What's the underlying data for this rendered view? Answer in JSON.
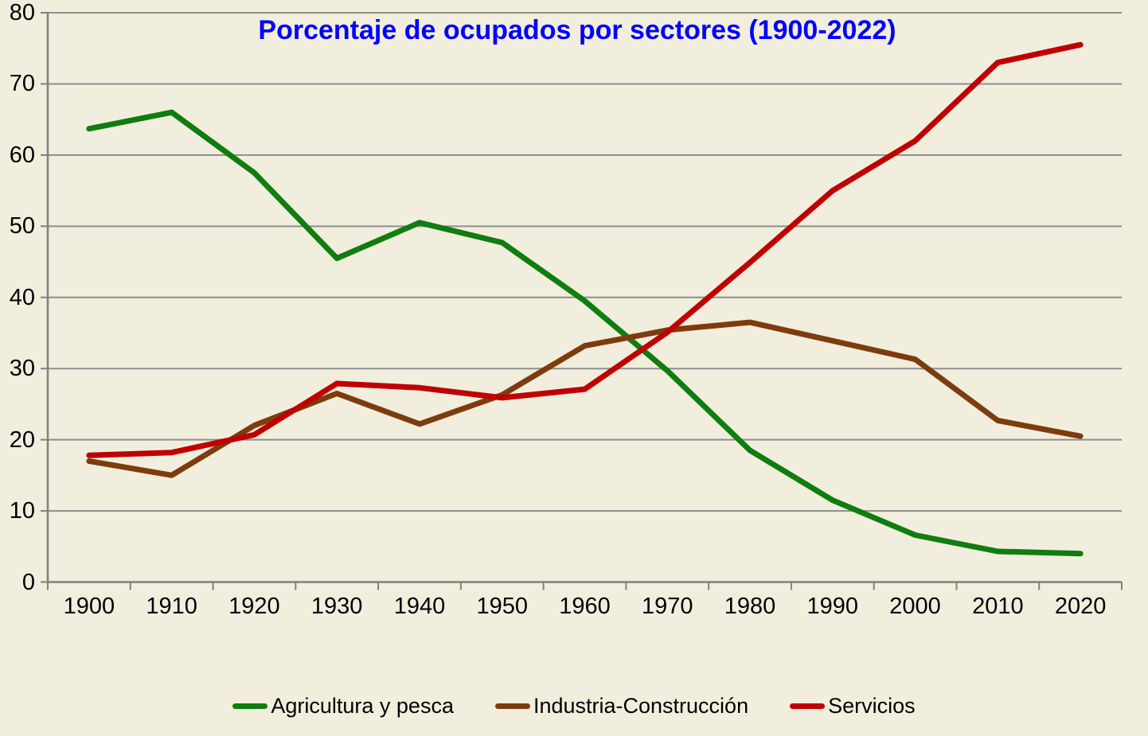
{
  "chart_data": {
    "type": "line",
    "title": "Porcentaje de ocupados por sectores (1900-2022)",
    "title_color": "#0000ff",
    "background_color": "#f2eedd",
    "grid": true,
    "legend_position": "bottom",
    "xlabel": "",
    "ylabel": "",
    "ylim": [
      0,
      80
    ],
    "y_ticks": [
      0,
      10,
      20,
      30,
      40,
      50,
      60,
      70,
      80
    ],
    "categories": [
      "1900",
      "1910",
      "1920",
      "1930",
      "1940",
      "1950",
      "1960",
      "1970",
      "1980",
      "1990",
      "2000",
      "2010",
      "2020"
    ],
    "series": [
      {
        "name": "Agricultura y pesca",
        "color": "#0f7d0f",
        "values": [
          63.7,
          66.0,
          57.5,
          45.5,
          50.5,
          47.7,
          39.5,
          29.7,
          18.5,
          11.5,
          6.6,
          4.3,
          4.0
        ]
      },
      {
        "name": "Industria-Construcción",
        "color": "#7d3c0e",
        "values": [
          17.0,
          15.0,
          22.0,
          26.5,
          22.2,
          26.3,
          33.2,
          35.4,
          36.5,
          33.9,
          31.3,
          22.7,
          20.5
        ]
      },
      {
        "name": "Servicios",
        "color": "#c00000",
        "values": [
          17.8,
          18.2,
          20.7,
          27.9,
          27.3,
          25.9,
          27.1,
          35.1,
          44.9,
          55.0,
          62.0,
          73.0,
          75.5
        ]
      }
    ],
    "axis_color": "#808080",
    "gridline_color": "#8e8e8e",
    "tick_label_color": "#000000"
  }
}
